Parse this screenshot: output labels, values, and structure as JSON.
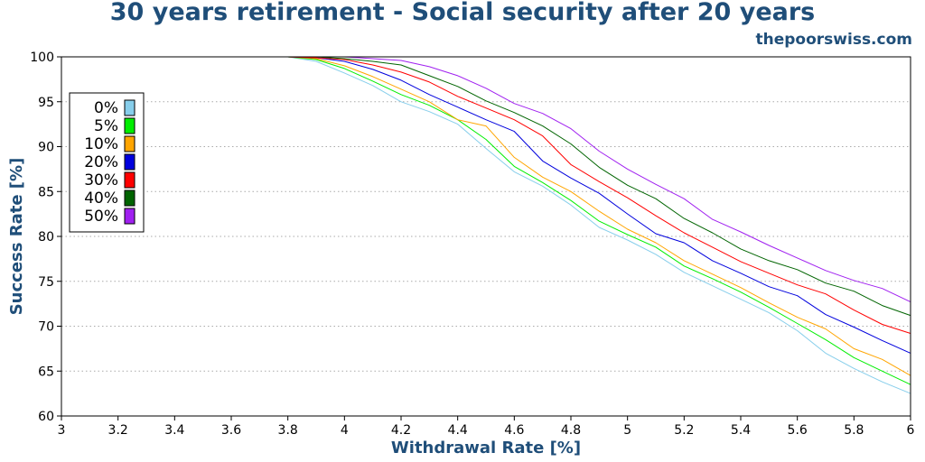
{
  "title": "30 years retirement - Social security after 20 years",
  "site": "thepoorswiss.com",
  "chart_data": {
    "type": "line",
    "xlabel": "Withdrawal Rate [%]",
    "ylabel": "Success Rate [%]",
    "xlim": [
      3,
      6
    ],
    "ylim": [
      60,
      100
    ],
    "xticks": [
      "3",
      "3.2",
      "3.4",
      "3.6",
      "3.8",
      "4",
      "4.2",
      "4.4",
      "4.6",
      "4.8",
      "5",
      "5.2",
      "5.4",
      "5.6",
      "5.8",
      "6"
    ],
    "yticks": [
      "60",
      "65",
      "70",
      "75",
      "80",
      "85",
      "90",
      "95",
      "100"
    ],
    "grid": "horizontal dotted",
    "legend_position": "top-left",
    "x": [
      3.0,
      3.5,
      3.8,
      3.9,
      4.0,
      4.1,
      4.2,
      4.3,
      4.4,
      4.5,
      4.6,
      4.7,
      4.8,
      4.9,
      5.0,
      5.1,
      5.2,
      5.3,
      5.4,
      5.5,
      5.6,
      5.7,
      5.8,
      5.9,
      6.0
    ],
    "series": [
      {
        "name": "0%",
        "color": "#87ceeb",
        "values": [
          100,
          100,
          100,
          99.5,
          98.2,
          96.8,
          95.0,
          93.9,
          92.5,
          89.8,
          87.2,
          85.6,
          83.5,
          81.0,
          79.6,
          78.0,
          76.0,
          74.5,
          73.0,
          71.5,
          69.5,
          67.0,
          65.3,
          63.8,
          62.5
        ]
      },
      {
        "name": "5%",
        "color": "#00ee00",
        "values": [
          100,
          100,
          100,
          99.7,
          98.7,
          97.3,
          95.8,
          94.6,
          93.0,
          90.8,
          87.8,
          86.0,
          84.0,
          81.7,
          80.2,
          78.8,
          76.7,
          75.3,
          73.8,
          72.1,
          70.3,
          68.5,
          66.5,
          65.0,
          63.5
        ]
      },
      {
        "name": "10%",
        "color": "#ffa500",
        "values": [
          100,
          100,
          100,
          99.8,
          99.0,
          97.8,
          96.4,
          95.0,
          93.0,
          92.3,
          88.8,
          86.6,
          85.0,
          82.8,
          80.8,
          79.3,
          77.3,
          75.8,
          74.3,
          72.6,
          71.0,
          69.7,
          67.5,
          66.3,
          64.5
        ]
      },
      {
        "name": "20%",
        "color": "#0000dd",
        "values": [
          100,
          100,
          100,
          99.9,
          99.5,
          98.6,
          97.4,
          95.8,
          94.4,
          93.0,
          91.7,
          88.4,
          86.5,
          84.8,
          82.5,
          80.3,
          79.3,
          77.3,
          75.9,
          74.4,
          73.4,
          71.3,
          69.9,
          68.4,
          67.0
        ]
      },
      {
        "name": "30%",
        "color": "#ff0000",
        "values": [
          100,
          100,
          100,
          99.9,
          99.7,
          99.1,
          98.3,
          97.2,
          95.6,
          94.3,
          93.0,
          91.2,
          88.0,
          86.1,
          84.3,
          82.3,
          80.4,
          78.8,
          77.2,
          75.9,
          74.6,
          73.6,
          71.8,
          70.2,
          69.2
        ]
      },
      {
        "name": "40%",
        "color": "#006400",
        "values": [
          100,
          100,
          100,
          100,
          99.8,
          99.5,
          99.1,
          97.9,
          96.7,
          95.1,
          93.8,
          92.3,
          90.3,
          87.7,
          85.7,
          84.2,
          82.0,
          80.4,
          78.6,
          77.3,
          76.3,
          74.8,
          73.9,
          72.3,
          71.2
        ]
      },
      {
        "name": "50%",
        "color": "#a020f0",
        "values": [
          100,
          100,
          100,
          100,
          100,
          99.8,
          99.6,
          98.9,
          97.9,
          96.5,
          94.8,
          93.7,
          92.0,
          89.5,
          87.5,
          85.8,
          84.2,
          81.9,
          80.5,
          79.0,
          77.6,
          76.2,
          75.1,
          74.2,
          72.7
        ]
      }
    ]
  }
}
